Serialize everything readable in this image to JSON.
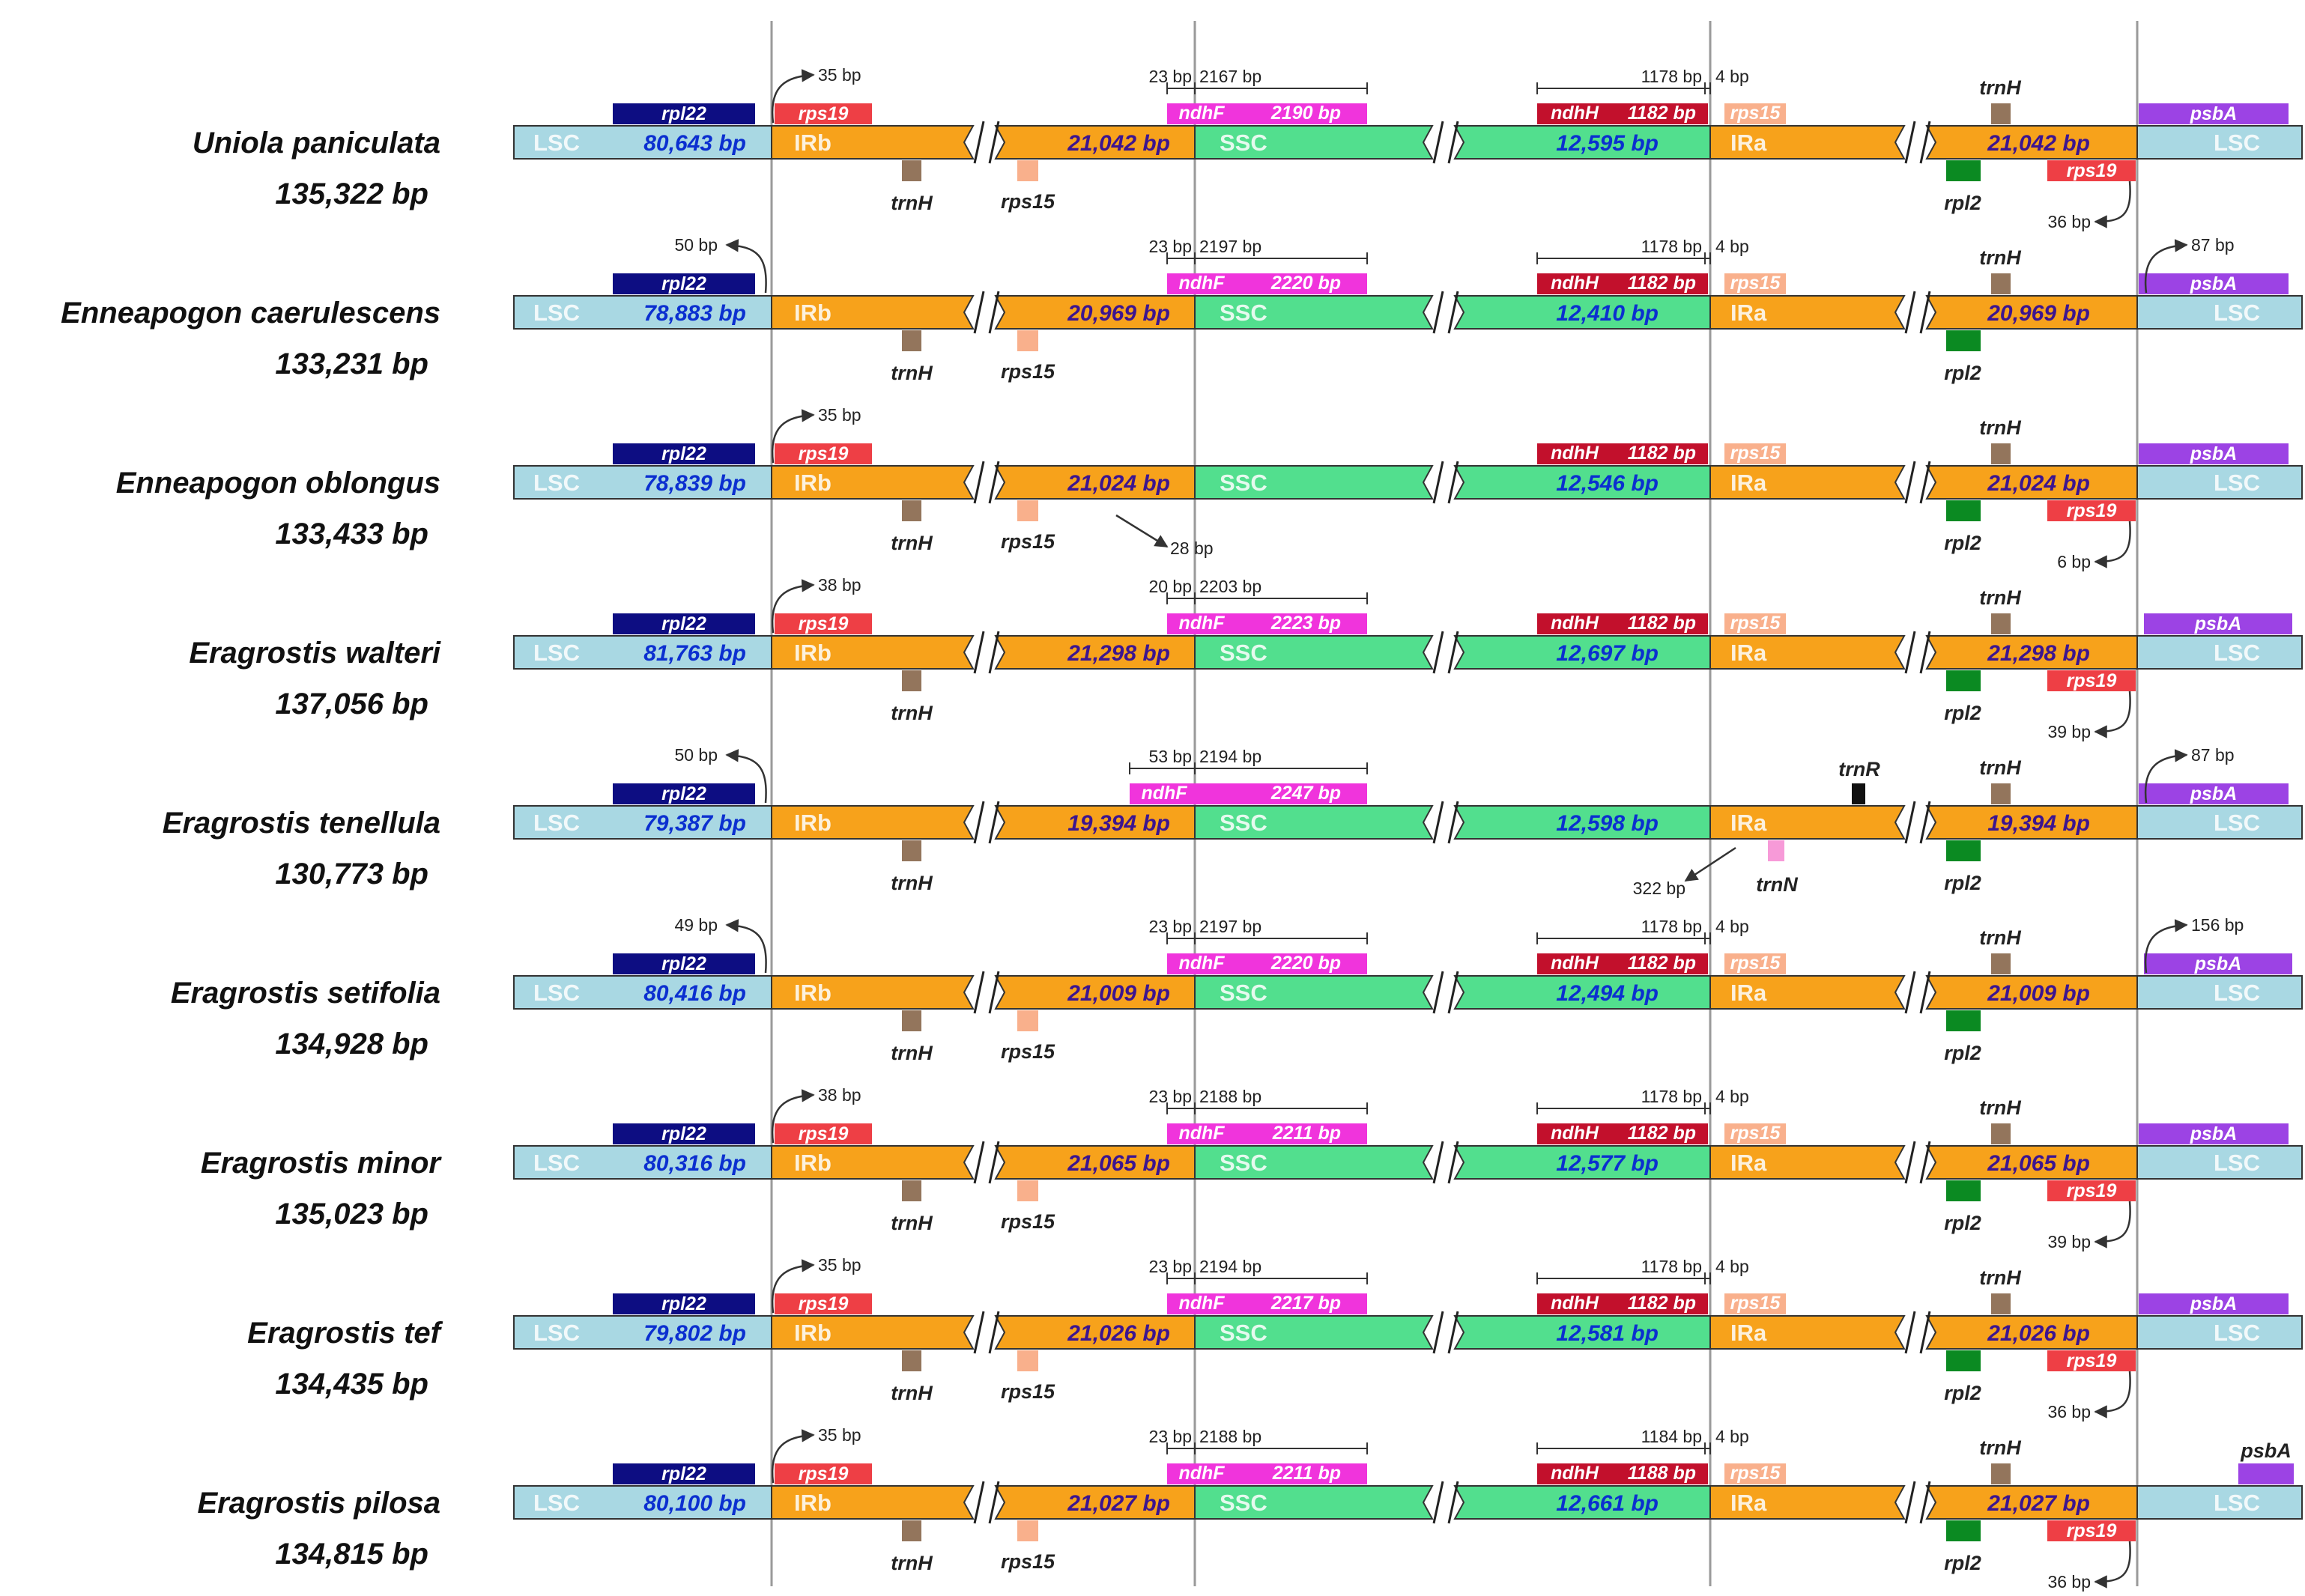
{
  "colors": {
    "lsc": "#a9d8e3",
    "ir": "#f7a21b",
    "ssc": "#52df8e",
    "rpl22": "#0d0d82",
    "rps19": "#ee3f45",
    "ndhF": "#f034dc",
    "ndhH": "#c2102c",
    "rps15": "#f9b08c",
    "trnH": "#93755c",
    "rpl2": "#0b8a22",
    "psbA": "#9c43e4",
    "trnR": "#111111",
    "trnN": "#f79ad8",
    "lscText": "#0b2fd0",
    "irText": "#3c1590",
    "sscText": "#0b2fd0",
    "guide": "#9a9a9a"
  },
  "segment_labels": {
    "lsc": "LSC",
    "irb": "IRb",
    "ssc": "SSC",
    "ira": "IRa"
  },
  "gene_names": {
    "rpl22": "rpl22",
    "rps19": "rps19",
    "ndhF": "ndhF",
    "ndhH": "ndhH",
    "rps15": "rps15",
    "trnH": "trnH",
    "rpl2": "rpl2",
    "psbA": "psbA",
    "trnR": "trnR",
    "trnN": "trnN"
  },
  "species": [
    {
      "name": "Uniola paniculata",
      "total": "135,322 bp",
      "lsc": "80,643 bp",
      "irb": "21,042 bp",
      "ssc": "12,595 bp",
      "ira": "21,042 bp",
      "rps19_top": true,
      "rps15_below": true,
      "rps19_right": true,
      "psbA_span": "full",
      "arrow_right_dir": "left",
      "ndhF_size": "2190 bp",
      "ndhF_left": "23 bp",
      "ndhF_right": "2167 bp",
      "ndhH_size": "1182 bp",
      "ndhH_left": "1178 bp",
      "ndhH_right": "4 bp",
      "arrow_left": "35 bp",
      "arrow_left_dir": "right",
      "arrow_right": "36 bp"
    },
    {
      "name": "Enneapogon caerulescens",
      "total": "133,231 bp",
      "lsc": "78,883 bp",
      "irb": "20,969 bp",
      "ssc": "12,410 bp",
      "ira": "20,969 bp",
      "rps19_top": false,
      "rps15_below": true,
      "rps19_right": false,
      "psbA_span": "full",
      "arrow_psbA_dir": "right",
      "ndhF_size": "2220 bp",
      "ndhF_left": "23 bp",
      "ndhF_right": "2197 bp",
      "ndhH_size": "1182 bp",
      "ndhH_left": "1178 bp",
      "ndhH_right": "4 bp",
      "arrow_left": "50 bp",
      "arrow_left_dir": "left",
      "arrow_psbA": "87 bp"
    },
    {
      "name": "Enneapogon oblongus",
      "total": "133,433 bp",
      "lsc": "78,839 bp",
      "irb": "21,024 bp",
      "ssc": "12,546 bp",
      "ira": "21,024 bp",
      "rps19_top": true,
      "rps15_below": true,
      "rps19_right": true,
      "psbA_span": "full",
      "arrow_right_dir": "left",
      "ndhF_none": true,
      "ndhH_size": "1182 bp",
      "arrow_left": "35 bp",
      "arrow_left_dir": "right",
      "arrow_ndhF": "28 bp",
      "arrow_right": "6 bp"
    },
    {
      "name": "Eragrostis walteri",
      "total": "137,056 bp",
      "lsc": "81,763 bp",
      "irb": "21,298 bp",
      "ssc": "12,697 bp",
      "ira": "21,298 bp",
      "rps19_top": true,
      "rps15_below": false,
      "rps19_right": true,
      "psbA_span": "short",
      "arrow_right_dir": "left",
      "ndhF_size": "2223 bp",
      "ndhF_left": "20 bp",
      "ndhF_right": "2203 bp",
      "ndhH_size": "1182 bp",
      "arrow_left": "38 bp",
      "arrow_left_dir": "right",
      "arrow_right": "39 bp"
    },
    {
      "name": "Eragrostis tenellula",
      "total": "130,773 bp",
      "lsc": "79,387 bp",
      "irb": "19,394 bp",
      "ssc": "12,598 bp",
      "ira": "19,394 bp",
      "rps19_top": false,
      "rps15_below": false,
      "rps19_right": false,
      "psbA_span": "full",
      "arrow_psbA_dir": "right",
      "ndhF_size": "2247 bp",
      "ndhF_left": "53 bp",
      "ndhF_right": "2194 bp",
      "ndhF_shift": true,
      "ndhH_none": true,
      "rps15_top_none": true,
      "trnR_trnN": true,
      "arrow_left": "50 bp",
      "arrow_left_dir": "left",
      "arrow_psbA": "87 bp",
      "arrow_ira": "322 bp"
    },
    {
      "name": "Eragrostis setifolia",
      "total": "134,928 bp",
      "lsc": "80,416 bp",
      "irb": "21,009 bp",
      "ssc": "12,494 bp",
      "ira": "21,009 bp",
      "rps19_top": false,
      "rps15_below": true,
      "rps19_right": false,
      "psbA_span": "short",
      "arrow_psbA_dir": "right",
      "ndhF_size": "2220 bp",
      "ndhF_left": "23 bp",
      "ndhF_right": "2197 bp",
      "ndhH_size": "1182 bp",
      "ndhH_left": "1178 bp",
      "ndhH_right": "4 bp",
      "arrow_left": "49 bp",
      "arrow_left_dir": "left",
      "arrow_psbA": "156 bp"
    },
    {
      "name": "Eragrostis minor",
      "total": "135,023 bp",
      "lsc": "80,316 bp",
      "irb": "21,065 bp",
      "ssc": "12,577 bp",
      "ira": "21,065 bp",
      "rps19_top": true,
      "rps15_below": true,
      "rps19_right": true,
      "psbA_span": "full",
      "arrow_right_dir": "left",
      "ndhF_size": "2211 bp",
      "ndhF_left": "23 bp",
      "ndhF_right": "2188 bp",
      "ndhH_size": "1182 bp",
      "ndhH_left": "1178 bp",
      "ndhH_right": "4 bp",
      "arrow_left": "38 bp",
      "arrow_left_dir": "right",
      "arrow_right": "39 bp"
    },
    {
      "name": "Eragrostis tef",
      "total": "134,435 bp",
      "lsc": "79,802 bp",
      "irb": "21,026 bp",
      "ssc": "12,581 bp",
      "ira": "21,026 bp",
      "rps19_top": true,
      "rps15_below": true,
      "rps19_right": true,
      "psbA_span": "full",
      "arrow_right_dir": "left",
      "ndhF_size": "2217 bp",
      "ndhF_left": "23 bp",
      "ndhF_right": "2194 bp",
      "ndhH_size": "1182 bp",
      "ndhH_left": "1178 bp",
      "ndhH_right": "4 bp",
      "arrow_left": "35 bp",
      "arrow_left_dir": "right",
      "arrow_right": "36 bp"
    },
    {
      "name": "Eragrostis pilosa",
      "total": "134,815 bp",
      "lsc": "80,100 bp",
      "irb": "21,027 bp",
      "ssc": "12,661 bp",
      "ira": "21,027 bp",
      "rps19_top": true,
      "rps15_below": true,
      "rps19_right": true,
      "psbA_span": "edge",
      "arrow_right_dir": "left",
      "ndhF_size": "2211 bp",
      "ndhF_left": "23 bp",
      "ndhF_right": "2188 bp",
      "ndhH_size": "1188 bp",
      "ndhH_left": "1184 bp",
      "ndhH_right": "4 bp",
      "arrow_left": "35 bp",
      "arrow_left_dir": "right",
      "arrow_right": "36 bp"
    }
  ]
}
